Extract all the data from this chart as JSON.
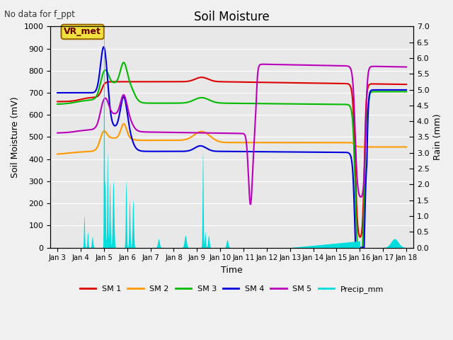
{
  "title": "Soil Moisture",
  "top_left_text": "No data for f_ppt",
  "ylabel_left": "Soil Moisture (mV)",
  "ylabel_right": "Rain (mm)",
  "xlabel": "Time",
  "annotation_box": "VR_met",
  "ylim_left": [
    0,
    1000
  ],
  "ylim_right": [
    0,
    7.0
  ],
  "yticks_left": [
    0,
    100,
    200,
    300,
    400,
    500,
    600,
    700,
    800,
    900,
    1000
  ],
  "yticks_right": [
    0.0,
    0.5,
    1.0,
    1.5,
    2.0,
    2.5,
    3.0,
    3.5,
    4.0,
    4.5,
    5.0,
    5.5,
    6.0,
    6.5,
    7.0
  ],
  "xtick_labels": [
    "Jan 3",
    "Jan 4",
    "Jan 5",
    "Jan 6",
    "Jan 7",
    "Jan 8",
    "Jan 9",
    "Jan 10",
    "Jan 11",
    "Jan 12",
    "Jan 13",
    "Jan 14",
    "Jan 15",
    "Jan 16",
    "Jan 17",
    "Jan 18"
  ],
  "plot_bg": "#e8e8e8",
  "fig_bg": "#f0f0f0",
  "grid_color": "#ffffff",
  "colors": {
    "SM1": "#dd0000",
    "SM2": "#ff9900",
    "SM3": "#00bb00",
    "SM4": "#0000dd",
    "SM5": "#bb00bb",
    "Precip": "#00dddd"
  },
  "legend": [
    "SM 1",
    "SM 2",
    "SM 3",
    "SM 4",
    "SM 5",
    "Precip_mm"
  ]
}
